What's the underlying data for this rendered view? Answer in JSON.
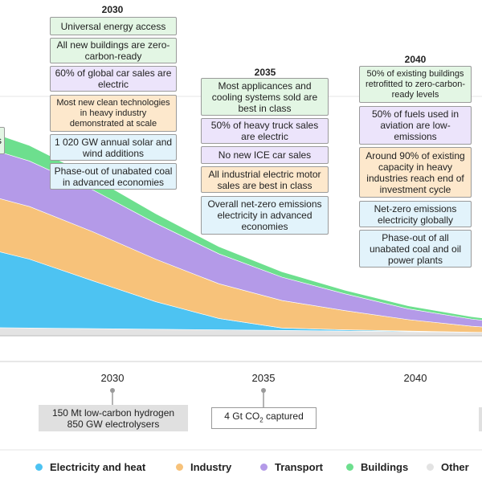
{
  "colors": {
    "electricity": "#4dc3f2",
    "industry": "#f7c27a",
    "transport": "#b49ae8",
    "buildings": "#6ddf8e",
    "other": "#e3e3e3",
    "box_green": "#e3f6e4",
    "box_purple": "#ece4fb",
    "box_orange": "#fde8cc",
    "box_blue": "#e2f3fb",
    "hydrogen_box": "#e0e0e0"
  },
  "chart_data": {
    "type": "area",
    "x": [
      2021,
      2024,
      2027,
      2030,
      2033,
      2036,
      2039,
      2042,
      2045,
      2048,
      2050
    ],
    "xlim": [
      2022.6,
      2045.5
    ],
    "ylim": [
      0,
      40
    ],
    "x_ticks": [
      {
        "value": 2030,
        "label": "2030"
      },
      {
        "value": 2035,
        "label": "2035"
      },
      {
        "value": 2040,
        "label": "2040"
      }
    ],
    "series": [
      {
        "name": "Other",
        "color_key": "other",
        "values": [
          1.4,
          1.3,
          1.2,
          1.1,
          1.0,
          0.9,
          0.8,
          0.7,
          0.6,
          0.5,
          0.5
        ]
      },
      {
        "name": "Electricity and heat",
        "color_key": "electricity",
        "values": [
          14.0,
          11.5,
          8.0,
          4.6,
          1.9,
          0.4,
          0.2,
          0.1,
          0.0,
          0.0,
          0.0
        ]
      },
      {
        "name": "Industry",
        "color_key": "industry",
        "values": [
          9.0,
          8.8,
          8.2,
          7.1,
          5.8,
          4.6,
          3.2,
          1.9,
          1.0,
          0.4,
          0.2
        ]
      },
      {
        "name": "Transport",
        "color_key": "transport",
        "values": [
          8.0,
          7.6,
          7.0,
          6.0,
          5.0,
          3.9,
          2.8,
          1.8,
          1.2,
          0.7,
          0.5
        ]
      },
      {
        "name": "Buildings",
        "color_key": "buildings",
        "values": [
          3.0,
          2.6,
          2.1,
          1.6,
          1.2,
          0.9,
          0.6,
          0.5,
          0.4,
          0.3,
          0.2
        ]
      }
    ]
  },
  "milestones": {
    "y2030": {
      "year": "2030",
      "items": [
        {
          "text": "Universal energy access",
          "color": "green"
        },
        {
          "text": "All new buildings are zero-carbon-ready",
          "color": "green"
        },
        {
          "text": "60% of global car sales are electric",
          "color": "purple"
        },
        {
          "text": "Most new clean technologies in heavy industry demonstrated at scale",
          "color": "orange"
        },
        {
          "text": "1 020 GW annual solar and wind additions",
          "color": "blue"
        },
        {
          "text": "Phase-out of unabated coal in advanced economies",
          "color": "blue"
        }
      ]
    },
    "y2035": {
      "year": "2035",
      "items": [
        {
          "text": "Most applicances and cooling systems sold are best in class",
          "color": "green"
        },
        {
          "text": "50% of heavy truck sales are electric",
          "color": "purple"
        },
        {
          "text": "No new ICE car sales",
          "color": "purple"
        },
        {
          "text": "All industrial electric motor sales are best in class",
          "color": "orange"
        },
        {
          "text": "Overall net-zero emissions electricity in advanced economies",
          "color": "blue"
        }
      ]
    },
    "y2040": {
      "year": "2040",
      "items": [
        {
          "text": "50% of existing buildings retrofitted to zero-carbon-ready levels",
          "color": "green"
        },
        {
          "text": "50% of fuels used in aviation are low-emissions",
          "color": "purple"
        },
        {
          "text": "Around 90% of existing capacity in heavy industries reach end of investment cycle",
          "color": "orange"
        },
        {
          "text": "Net-zero emissions electricity globally",
          "color": "blue"
        },
        {
          "text": "Phase-out of all unabated coal and oil power plants",
          "color": "blue"
        }
      ]
    }
  },
  "left_edge_label": "s",
  "bottom_notes": {
    "hydrogen": {
      "line1": "150 Mt low-carbon hydrogen",
      "line2": "850 GW electrolysers"
    },
    "ccus": {
      "prefix": "4 Gt CO",
      "sub": "2",
      "suffix": " captured"
    }
  },
  "legend": [
    {
      "name": "Electricity and heat",
      "color_key": "electricity"
    },
    {
      "name": "Industry",
      "color_key": "industry"
    },
    {
      "name": "Transport",
      "color_key": "transport"
    },
    {
      "name": "Buildings",
      "color_key": "buildings"
    },
    {
      "name": "Other",
      "color_key": "other"
    }
  ]
}
